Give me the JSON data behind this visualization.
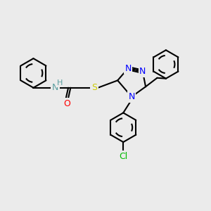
{
  "bg_color": "#ebebeb",
  "bond_color": "#000000",
  "atom_colors": {
    "N": "#0000ff",
    "O": "#ff0000",
    "S": "#cccc00",
    "Cl": "#00bb00",
    "H": "#5a9ea0",
    "C": "#000000"
  },
  "line_width": 1.5,
  "font_size": 9
}
